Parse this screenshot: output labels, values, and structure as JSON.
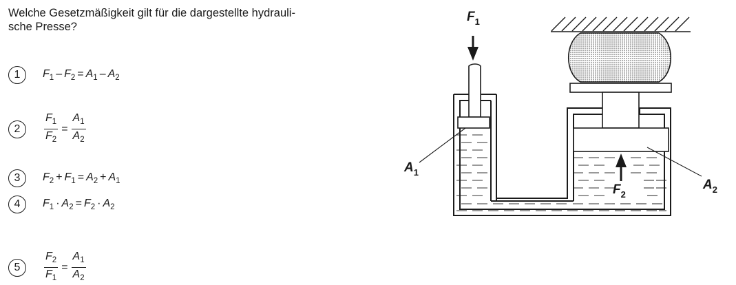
{
  "question": "Welche Gesetzmäßigkeit gilt für die dargestellte hydrauli-sche Presse?",
  "question_lines": [
    "Welche Gesetzmäßigkeit gilt für die dargestellte hydrauli-",
    "sche Presse?"
  ],
  "options": [
    {
      "number": "1",
      "formula": "F1 – F2 = A1 – A2"
    },
    {
      "number": "2",
      "formula": "F1/F2 = A1/A2"
    },
    {
      "number": "3",
      "formula": "F2 + F1 = A2 + A1"
    },
    {
      "number": "4",
      "formula": "F1 · A2 = F2 · A2"
    },
    {
      "number": "5",
      "formula": "F2/F1 = A1/A2"
    }
  ],
  "symbols": {
    "F": "F",
    "A": "A",
    "one": "1",
    "two": "2",
    "minus": "–",
    "plus": "+",
    "equals": "=",
    "dot": "·"
  },
  "diagram": {
    "label_F1": "F",
    "label_F1_sub": "1",
    "label_F2": "F",
    "label_F2_sub": "2",
    "label_A1": "A",
    "label_A1_sub": "1",
    "label_A2": "A",
    "label_A2_sub": "2"
  }
}
